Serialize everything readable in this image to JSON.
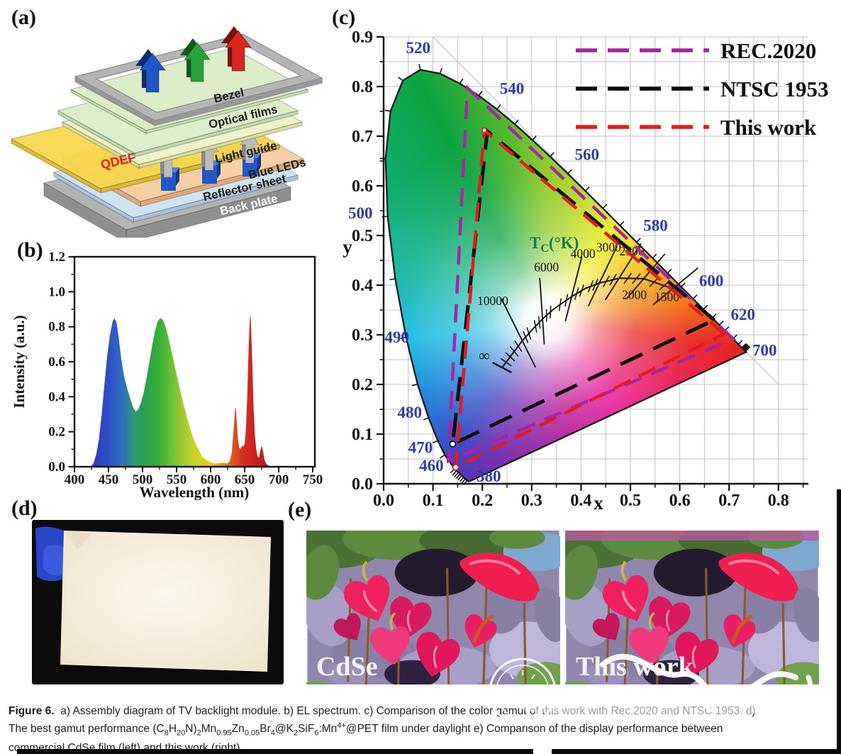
{
  "figure": {
    "panel_labels": {
      "a": "(a)",
      "b": "(b)",
      "c": "(c)",
      "d": "(d)",
      "e": "(e)"
    },
    "caption_lines": [
      "<b>Figure 6.</b>&nbsp; a) Assembly diagram of TV backlight module. b) EL spectrum. c) Comparison of the color gamut of this work with Rec.2020 and NTSC 1953. d)",
      "The best gamut performance (C<sub>8</sub>H<sub>20</sub>N)<sub>2</sub>Mn<sub>0.95</sub>Zn<sub>0.05</sub>Br<sub>4</sub>@K<sub>2</sub>SiF<sub>6</sub>:Mn<sup>4+</sup>@PET film under daylight e) Comparison of the display performance between",
      "commercial CdSe film (left) and this work (right)."
    ]
  },
  "panel_a": {
    "layers": [
      {
        "id": "back-plate",
        "label": "Back plate",
        "top": "#b3b3b3",
        "front": "#8f8f8f",
        "label_color": "#ffffff"
      },
      {
        "id": "reflector",
        "label": "Reflector sheet",
        "top": "#cfe3f2",
        "front": "#a9c4dd",
        "label_color": "#1a1a1a"
      },
      {
        "id": "light-guide",
        "label": "Light guide",
        "top": "#f6cfa2",
        "front": "#e0a878",
        "label_color": "#1a1a1a"
      },
      {
        "id": "qdef",
        "label": "QDEF",
        "top": "#f7d74d",
        "front": "#dcb52e",
        "label_color": "#e02020"
      },
      {
        "id": "leds",
        "label": "Blue LEDs",
        "top": "#4f83e0",
        "front": "#2157c8",
        "label_color": "#1a1a1a"
      },
      {
        "id": "optical",
        "label": "Optical films",
        "top": "#eef2c6",
        "front": "#d8dc9e",
        "label_color": "#1a1a1a"
      },
      {
        "id": "bezel",
        "label": "Bezel",
        "top": "#b5b5b5",
        "front": "#969696",
        "label_color": "#1a1a1a"
      }
    ],
    "rgb_arrows": [
      {
        "name": "blue-arrow",
        "fill": "#1e55c9",
        "dark": "#0c2d6b"
      },
      {
        "name": "green-arrow",
        "fill": "#27a23a",
        "dark": "#0e5a1d"
      },
      {
        "name": "red-arrow",
        "fill": "#d8271c",
        "dark": "#7a100c"
      }
    ]
  },
  "panel_e": {
    "left_label": "CdSe",
    "right_label": "This work"
  },
  "chart_data": [
    {
      "id": "el-spectrum",
      "type": "area",
      "title": "",
      "xlabel": "Wavelength (nm)",
      "ylabel": "Intensity (a.u.)",
      "xlim": [
        400,
        750
      ],
      "ylim": [
        0,
        1.2
      ],
      "xticks": [
        400,
        450,
        500,
        550,
        600,
        650,
        700,
        750
      ],
      "yticks": [
        0.0,
        0.2,
        0.4,
        0.6,
        0.8,
        1.0,
        1.2
      ],
      "grid": false,
      "peaks_nm": {
        "blue": 459,
        "green": 526,
        "red": 658
      },
      "points": [
        [
          424,
          0
        ],
        [
          428,
          0.02
        ],
        [
          432,
          0.07
        ],
        [
          436,
          0.16
        ],
        [
          440,
          0.3
        ],
        [
          444,
          0.47
        ],
        [
          448,
          0.63
        ],
        [
          452,
          0.75
        ],
        [
          456,
          0.83
        ],
        [
          459,
          0.85
        ],
        [
          462,
          0.82
        ],
        [
          465,
          0.74
        ],
        [
          468,
          0.64
        ],
        [
          471,
          0.56
        ],
        [
          474,
          0.5
        ],
        [
          478,
          0.44
        ],
        [
          482,
          0.39
        ],
        [
          486,
          0.34
        ],
        [
          490,
          0.315
        ],
        [
          494,
          0.33
        ],
        [
          498,
          0.37
        ],
        [
          502,
          0.43
        ],
        [
          506,
          0.51
        ],
        [
          510,
          0.6
        ],
        [
          514,
          0.69
        ],
        [
          518,
          0.77
        ],
        [
          522,
          0.83
        ],
        [
          526,
          0.85
        ],
        [
          530,
          0.84
        ],
        [
          534,
          0.8
        ],
        [
          538,
          0.74
        ],
        [
          542,
          0.67
        ],
        [
          546,
          0.6
        ],
        [
          550,
          0.53
        ],
        [
          554,
          0.46
        ],
        [
          558,
          0.39
        ],
        [
          562,
          0.33
        ],
        [
          566,
          0.27
        ],
        [
          570,
          0.22
        ],
        [
          574,
          0.17
        ],
        [
          578,
          0.13
        ],
        [
          582,
          0.1
        ],
        [
          586,
          0.07
        ],
        [
          590,
          0.05
        ],
        [
          595,
          0.035
        ],
        [
          600,
          0.025
        ],
        [
          606,
          0.018
        ],
        [
          612,
          0.02
        ],
        [
          618,
          0.022
        ],
        [
          624,
          0.018
        ],
        [
          628,
          0.03
        ],
        [
          631,
          0.08
        ],
        [
          634,
          0.22
        ],
        [
          636,
          0.33
        ],
        [
          637,
          0.34
        ],
        [
          638,
          0.28
        ],
        [
          640,
          0.16
        ],
        [
          642,
          0.11
        ],
        [
          644,
          0.1
        ],
        [
          646,
          0.12
        ],
        [
          648,
          0.115
        ],
        [
          650,
          0.13
        ],
        [
          652,
          0.22
        ],
        [
          654,
          0.42
        ],
        [
          656,
          0.7
        ],
        [
          658,
          0.87
        ],
        [
          659,
          0.85
        ],
        [
          661,
          0.62
        ],
        [
          663,
          0.35
        ],
        [
          665,
          0.18
        ],
        [
          667,
          0.1
        ],
        [
          669,
          0.06
        ],
        [
          671,
          0.05
        ],
        [
          673,
          0.09
        ],
        [
          675,
          0.12
        ],
        [
          677,
          0.09
        ],
        [
          679,
          0.04
        ],
        [
          682,
          0.015
        ],
        [
          686,
          0.005
        ],
        [
          692,
          0
        ]
      ],
      "color_stops": [
        [
          425,
          "#3538b8"
        ],
        [
          450,
          "#2b50c8"
        ],
        [
          470,
          "#2e6fc0"
        ],
        [
          490,
          "#2e9a66"
        ],
        [
          505,
          "#2ba24f"
        ],
        [
          525,
          "#37b033"
        ],
        [
          550,
          "#86c433"
        ],
        [
          575,
          "#c7d42a"
        ],
        [
          600,
          "#e0cb20"
        ],
        [
          615,
          "#e39a1b"
        ],
        [
          630,
          "#df5e1a"
        ],
        [
          645,
          "#d93420"
        ],
        [
          665,
          "#cf1d1d"
        ],
        [
          700,
          "#b81616"
        ]
      ]
    },
    {
      "id": "cie-1931-gamut",
      "type": "chromaticity",
      "xlabel": "x",
      "ylabel": "y",
      "xlim": [
        0,
        0.8
      ],
      "ylim": [
        0,
        0.9
      ],
      "grid_step": 0.05,
      "legend_position": "top-right",
      "legend": [
        {
          "label": "REC.2020",
          "color": "#a625a6",
          "dash": "26 15"
        },
        {
          "label": "NTSC 1953",
          "color": "#0d0d0d",
          "dash": "34 17"
        },
        {
          "label": "This work",
          "color": "#e51a1a",
          "dash": "26 13"
        }
      ],
      "series": [
        {
          "name": "REC.2020",
          "color": "#a625a6",
          "dash": "26 15",
          "width": 4.5,
          "vertices": [
            [
              0.708,
              0.292
            ],
            [
              0.17,
              0.797
            ],
            [
              0.131,
              0.046
            ]
          ]
        },
        {
          "name": "NTSC 1953",
          "color": "#0d0d0d",
          "dash": "34 17",
          "width": 5,
          "vertices": [
            [
              0.67,
              0.33
            ],
            [
              0.21,
              0.71
            ],
            [
              0.14,
              0.08
            ]
          ]
        },
        {
          "name": "This work",
          "color": "#e51a1a",
          "dash": "26 13",
          "width": 4.5,
          "vertices": [
            [
              0.69,
              0.302
            ],
            [
              0.204,
              0.712
            ],
            [
              0.146,
              0.033
            ]
          ]
        }
      ],
      "markers": [
        {
          "x": 0.14,
          "y": 0.08,
          "stroke": "#111111",
          "r": 4
        },
        {
          "x": 0.146,
          "y": 0.033,
          "stroke": "#e51a1a",
          "r": 4
        },
        {
          "x": 0.204,
          "y": 0.712,
          "stroke": "#e51a1a",
          "r": 3.2
        }
      ],
      "spectral_locus": [
        [
          380,
          0.1741,
          0.005
        ],
        [
          420,
          0.1714,
          0.0051
        ],
        [
          440,
          0.1644,
          0.0109
        ],
        [
          460,
          0.144,
          0.0297
        ],
        [
          470,
          0.1241,
          0.0578
        ],
        [
          475,
          0.1096,
          0.0868
        ],
        [
          480,
          0.0913,
          0.1327
        ],
        [
          485,
          0.0687,
          0.2007
        ],
        [
          490,
          0.0454,
          0.295
        ],
        [
          495,
          0.0235,
          0.4127
        ],
        [
          500,
          0.0082,
          0.5384
        ],
        [
          505,
          0.0039,
          0.6548
        ],
        [
          510,
          0.0139,
          0.7502
        ],
        [
          515,
          0.0389,
          0.812
        ],
        [
          520,
          0.0743,
          0.8338
        ],
        [
          525,
          0.1142,
          0.8262
        ],
        [
          530,
          0.1547,
          0.8059
        ],
        [
          535,
          0.1929,
          0.7816
        ],
        [
          540,
          0.2296,
          0.7543
        ],
        [
          545,
          0.2658,
          0.7243
        ],
        [
          550,
          0.3016,
          0.6923
        ],
        [
          555,
          0.3373,
          0.6589
        ],
        [
          560,
          0.3731,
          0.6245
        ],
        [
          565,
          0.4087,
          0.5896
        ],
        [
          570,
          0.4441,
          0.5547
        ],
        [
          575,
          0.4788,
          0.5202
        ],
        [
          580,
          0.5125,
          0.4866
        ],
        [
          585,
          0.5448,
          0.4544
        ],
        [
          590,
          0.5752,
          0.4242
        ],
        [
          595,
          0.6029,
          0.3965
        ],
        [
          600,
          0.627,
          0.3725
        ],
        [
          605,
          0.6482,
          0.3514
        ],
        [
          610,
          0.6658,
          0.334
        ],
        [
          615,
          0.6801,
          0.3197
        ],
        [
          620,
          0.6915,
          0.3083
        ],
        [
          630,
          0.7079,
          0.292
        ],
        [
          640,
          0.719,
          0.2809
        ],
        [
          650,
          0.726,
          0.274
        ],
        [
          700,
          0.7347,
          0.2653
        ]
      ],
      "locus_labels": [
        {
          "text": "520",
          "x": 0.07,
          "y": 0.867,
          "anchor": "middle"
        },
        {
          "text": "540",
          "x": 0.26,
          "y": 0.785,
          "anchor": "middle"
        },
        {
          "text": "560",
          "x": 0.412,
          "y": 0.652,
          "anchor": "middle"
        },
        {
          "text": "580",
          "x": 0.551,
          "y": 0.509,
          "anchor": "middle"
        },
        {
          "text": "600",
          "x": 0.664,
          "y": 0.398,
          "anchor": "middle"
        },
        {
          "text": "620",
          "x": 0.728,
          "y": 0.33,
          "anchor": "middle"
        },
        {
          "text": "700",
          "x": 0.772,
          "y": 0.258,
          "anchor": "middle"
        },
        {
          "text": "500",
          "x": -0.047,
          "y": 0.534,
          "anchor": "middle"
        },
        {
          "text": "490",
          "x": 0.002,
          "y": 0.284,
          "anchor": "start"
        },
        {
          "text": "480",
          "x": 0.028,
          "y": 0.133,
          "anchor": "start"
        },
        {
          "text": "470",
          "x": 0.05,
          "y": 0.062,
          "anchor": "start"
        },
        {
          "text": "460",
          "x": 0.072,
          "y": 0.026,
          "anchor": "start"
        },
        {
          "text": "380",
          "x": 0.213,
          "y": 0.004,
          "anchor": "middle"
        }
      ],
      "planckian_locus": {
        "label": "T_c(°K)",
        "label_color": "#0d7d4d",
        "label_at": [
          0.296,
          0.474
        ],
        "convergence": [
          0.332,
          0.186
        ],
        "points": [
          {
            "t": "∞",
            "x": 0.24,
            "y": 0.234,
            "label_at": [
              0.204,
              0.248
            ]
          },
          {
            "t": "10000",
            "x": 0.281,
            "y": 0.288,
            "label_at": [
              0.221,
              0.36
            ]
          },
          {
            "t": "",
            "x": 0.3,
            "y": 0.309
          },
          {
            "t": "6000",
            "x": 0.322,
            "y": 0.332,
            "label_at": [
              0.33,
              0.428
            ]
          },
          {
            "t": "",
            "x": 0.345,
            "y": 0.352
          },
          {
            "t": "4000",
            "x": 0.381,
            "y": 0.377,
            "label_at": [
              0.404,
              0.455
            ]
          },
          {
            "t": "",
            "x": 0.41,
            "y": 0.394
          },
          {
            "t": "3000",
            "x": 0.437,
            "y": 0.404,
            "label_at": [
              0.456,
              0.468
            ]
          },
          {
            "t": "2500",
            "x": 0.477,
            "y": 0.414,
            "label_at": [
              0.503,
              0.46
            ]
          },
          {
            "t": "2000",
            "x": 0.527,
            "y": 0.413,
            "label_at": [
              0.508,
              0.372
            ]
          },
          {
            "t": "1500",
            "x": 0.586,
            "y": 0.393,
            "label_at": [
              0.574,
              0.368
            ]
          }
        ]
      }
    }
  ]
}
